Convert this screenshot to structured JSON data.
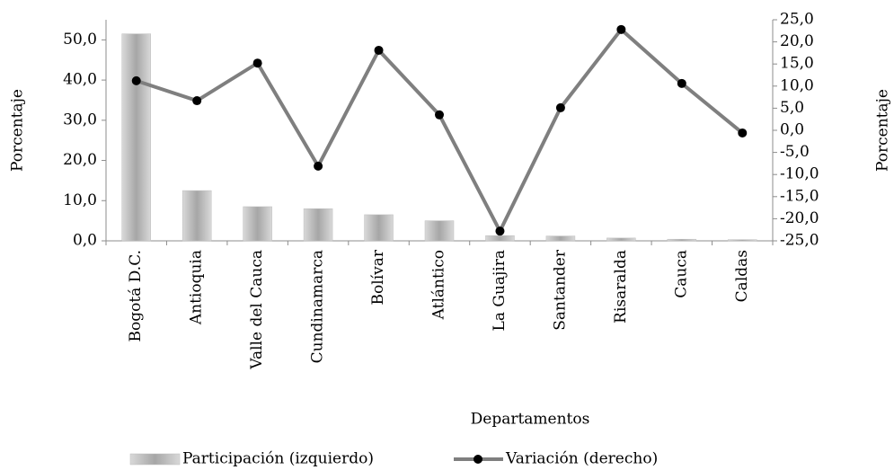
{
  "chart_data": {
    "type": "bar_line",
    "x_label": "Departamentos",
    "y_label": "Porcentaje",
    "y2_label": "Porcentaje",
    "categories": [
      "Bogotá D.C.",
      "Antioquia",
      "Valle del Cauca",
      "Cundinamarca",
      "Bolívar",
      "Atlántico",
      "La Guajira",
      "Santander",
      "Risaralda",
      "Cauca",
      "Caldas"
    ],
    "series": [
      {
        "name": "Participación (izquierdo)",
        "type": "bar",
        "color": "#bdbdbd",
        "values": [
          51.5,
          12.5,
          8.5,
          8.0,
          6.5,
          5.0,
          1.3,
          1.2,
          0.7,
          0.4,
          0.3
        ]
      },
      {
        "name": "Variación (derecho)",
        "type": "line",
        "axis": "y2",
        "color": "#7f7f7f",
        "values": [
          11.2,
          6.7,
          15.2,
          -8.1,
          18.1,
          3.5,
          -22.8,
          5.1,
          22.8,
          10.6,
          -0.6
        ]
      }
    ],
    "ylim": [
      0,
      55
    ],
    "yticks": [
      {
        "value": 0,
        "label": "0,0"
      },
      {
        "value": 10,
        "label": "10,0"
      },
      {
        "value": 20,
        "label": "20,0"
      },
      {
        "value": 30,
        "label": "30,0"
      },
      {
        "value": 40,
        "label": "40,0"
      },
      {
        "value": 50,
        "label": "50,0"
      }
    ],
    "y2lim": [
      -25,
      25
    ],
    "y2ticks": [
      {
        "value": 25,
        "label": "25,0"
      },
      {
        "value": 20,
        "label": "20,0"
      },
      {
        "value": 15,
        "label": "15,0"
      },
      {
        "value": 10,
        "label": "10,0"
      },
      {
        "value": 5,
        "label": "5,0"
      },
      {
        "value": 0,
        "label": "0,0"
      },
      {
        "value": -5,
        "label": "-5,0"
      },
      {
        "value": -10,
        "label": "-10,0"
      },
      {
        "value": -15,
        "label": "-15,0"
      },
      {
        "value": -20,
        "label": "-20,0"
      },
      {
        "value": -25,
        "label": "-25,0"
      }
    ],
    "grid": false
  }
}
